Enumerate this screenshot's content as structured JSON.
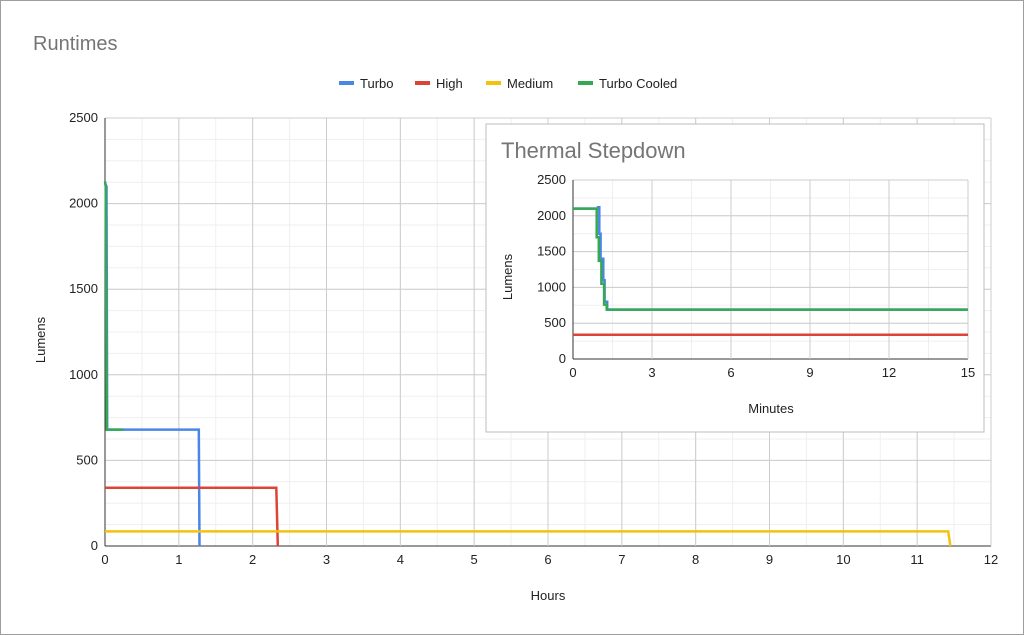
{
  "chart_data": [
    {
      "id": "main",
      "type": "line",
      "title": "Runtimes",
      "xlabel": "Hours",
      "ylabel": "Lumens",
      "xlim": [
        0,
        12
      ],
      "ylim": [
        0,
        2500
      ],
      "x_ticks": [
        "0",
        "1",
        "2",
        "3",
        "4",
        "5",
        "6",
        "7",
        "8",
        "9",
        "10",
        "11",
        "12"
      ],
      "y_ticks": [
        "0",
        "500",
        "1000",
        "1500",
        "2000",
        "2500"
      ],
      "grid": true,
      "legend_position": "top",
      "series": [
        {
          "name": "Turbo",
          "color": "#4a86e8",
          "points": [
            [
              0,
              2120
            ],
            [
              0.02,
              2100
            ],
            [
              0.03,
              680
            ],
            [
              1.27,
              680
            ],
            [
              1.28,
              0
            ]
          ]
        },
        {
          "name": "High",
          "color": "#db4437",
          "points": [
            [
              0,
              340
            ],
            [
              2.32,
              340
            ],
            [
              2.34,
              0
            ]
          ]
        },
        {
          "name": "Medium",
          "color": "#f4c20d",
          "points": [
            [
              0,
              85
            ],
            [
              11.42,
              85
            ],
            [
              11.45,
              0
            ]
          ]
        },
        {
          "name": "Turbo Cooled",
          "color": "#34a853",
          "points": [
            [
              0,
              2130
            ],
            [
              0.01,
              2100
            ],
            [
              0.025,
              680
            ],
            [
              0.25,
              680
            ]
          ]
        }
      ]
    },
    {
      "id": "inset",
      "type": "line",
      "title": "Thermal Stepdown",
      "xlabel": "Minutes",
      "ylabel": "Lumens",
      "xlim": [
        0,
        15
      ],
      "ylim": [
        0,
        2500
      ],
      "x_ticks": [
        "0",
        "3",
        "6",
        "9",
        "12",
        "15"
      ],
      "y_ticks": [
        "0",
        "500",
        "1000",
        "1500",
        "2000",
        "2500"
      ],
      "grid": true,
      "series": [
        {
          "name": "Turbo",
          "color": "#4a86e8",
          "points": [
            [
              0,
              2100
            ],
            [
              0.95,
              2100
            ],
            [
              0.95,
              2120
            ],
            [
              1.0,
              2120
            ],
            [
              1.0,
              1750
            ],
            [
              1.05,
              1750
            ],
            [
              1.05,
              1400
            ],
            [
              1.15,
              1400
            ],
            [
              1.15,
              1100
            ],
            [
              1.2,
              1100
            ],
            [
              1.2,
              800
            ],
            [
              1.3,
              800
            ],
            [
              1.3,
              690
            ],
            [
              15,
              690
            ]
          ]
        },
        {
          "name": "High",
          "color": "#db4437",
          "points": [
            [
              0,
              340
            ],
            [
              15,
              340
            ]
          ]
        },
        {
          "name": "Turbo Cooled",
          "color": "#34a853",
          "points": [
            [
              0,
              2100
            ],
            [
              0.9,
              2100
            ],
            [
              0.9,
              1700
            ],
            [
              0.98,
              1700
            ],
            [
              0.98,
              1370
            ],
            [
              1.08,
              1370
            ],
            [
              1.08,
              1050
            ],
            [
              1.18,
              1050
            ],
            [
              1.18,
              760
            ],
            [
              1.28,
              760
            ],
            [
              1.28,
              690
            ],
            [
              15,
              690
            ]
          ]
        }
      ]
    }
  ]
}
